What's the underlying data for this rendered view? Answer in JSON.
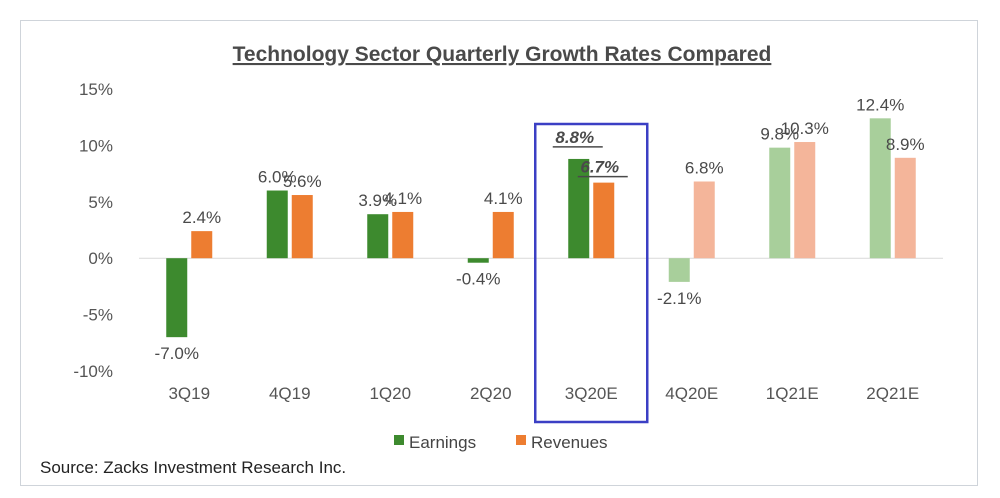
{
  "chart_data": {
    "type": "bar",
    "title": "Technology Sector Quarterly Growth Rates Compared",
    "categories": [
      "3Q19",
      "4Q19",
      "1Q20",
      "2Q20",
      "3Q20E",
      "4Q20E",
      "1Q21E",
      "2Q21E"
    ],
    "series": [
      {
        "name": "Earnings",
        "values": [
          -7.0,
          6.0,
          3.9,
          -0.4,
          8.8,
          -2.1,
          9.8,
          12.4
        ],
        "labels": [
          "-7.0%",
          "6.0%",
          "3.9%",
          "-0.4%",
          "8.8%",
          "-2.1%",
          "9.8%",
          "12.4%"
        ],
        "color": "#3d8a2e",
        "estimate_color": "#a8cf9b"
      },
      {
        "name": "Revenues",
        "values": [
          2.4,
          5.6,
          4.1,
          4.1,
          6.7,
          6.8,
          10.3,
          8.9
        ],
        "labels": [
          "2.4%",
          "5.6%",
          "4.1%",
          "4.1%",
          "6.7%",
          "6.8%",
          "10.3%",
          "8.9%"
        ],
        "color": "#ed7d31",
        "estimate_color": "#f4b59a"
      }
    ],
    "y_ticks": [
      15,
      10,
      5,
      0,
      -5,
      -10
    ],
    "y_tick_labels": [
      "15%",
      "10%",
      "5%",
      "0%",
      "-5%",
      "-10%"
    ],
    "ylim": [
      -10,
      15
    ],
    "xlabel": "",
    "ylabel": "",
    "highlight_category": "3Q20E",
    "highlight_color": "#3b3fc4",
    "faded_categories": [
      "4Q20E",
      "1Q21E",
      "2Q21E"
    ],
    "legend_position": "bottom",
    "grid": false
  },
  "source": "Source: Zacks Investment Research Inc."
}
